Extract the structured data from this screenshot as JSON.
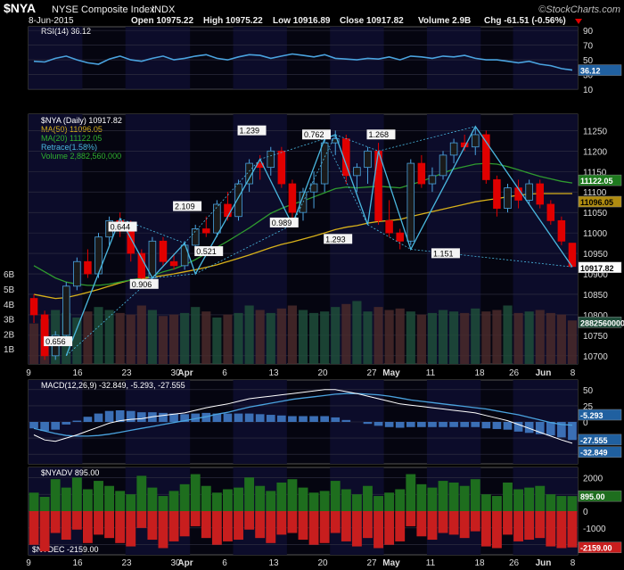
{
  "header": {
    "symbol": "$NYA",
    "name": "NYSE Composite Index",
    "exchange": "INDX",
    "source": "©StockCharts.com",
    "date": "8-Jun-2015",
    "open": "Open 10975.22",
    "high": "High 10975.22",
    "low": "Low 10916.89",
    "close": "Close 10917.82",
    "volume": "Volume 2.9B",
    "change": "Chg -61.51 (-0.56%)"
  },
  "colors": {
    "up": "#1a1a1a",
    "down": "#e00000",
    "candle_outline": "#4aa3df",
    "ma50": "#d8b11a",
    "ma20": "#2f9a2f",
    "retrace": "#4ab8e0",
    "rsi": "#4aa3df",
    "macd": "#ffffff",
    "signal": "#4aa3df",
    "hist": "#3b6fb5",
    "volume": "#1f4d3a",
    "adv": "#1e6e1e",
    "dec": "#c81e1e",
    "grid": "#333344",
    "band": "#0c0c2a"
  },
  "chart_data": {
    "type": "candlestick",
    "x_ticks": [
      "9",
      "16",
      "23",
      "30",
      "Apr",
      "6",
      "13",
      "20",
      "27",
      "May",
      "11",
      "18",
      "26",
      "Jun",
      "8"
    ],
    "rsi": {
      "legend": "RSI(14) 36.12",
      "ticks": [
        "90",
        "70",
        "50",
        "30",
        "10"
      ],
      "range": [
        10,
        95
      ],
      "last": "36.12",
      "values": [
        48,
        47,
        52,
        55,
        50,
        46,
        44,
        51,
        55,
        50,
        48,
        52,
        55,
        50,
        52,
        55,
        57,
        52,
        50,
        54,
        57,
        56,
        52,
        55,
        58,
        56,
        54,
        57,
        52,
        51,
        50,
        52,
        51,
        54,
        50,
        55,
        54,
        52,
        55,
        54,
        56,
        52,
        50,
        50,
        48,
        46,
        48,
        44,
        42,
        38,
        36
      ]
    },
    "price": {
      "legend_symbol": "$NYA (Daily) 10917.82",
      "legend_ma50": "MA(50) 11096.05",
      "legend_ma20": "MA(20) 11122.05",
      "legend_retrace": "Retrace(1.58%)",
      "legend_volume": "Volume 2,882,560,000",
      "ticks": [
        "11250",
        "11200",
        "11150",
        "11100",
        "11050",
        "11000",
        "10950",
        "10900",
        "10850",
        "10800",
        "10750",
        "10700"
      ],
      "range": [
        10680,
        11290
      ],
      "tag_ma20": "11122.05",
      "tag_ma50": "11096.05",
      "tag_close": "10917.82",
      "ohlc": [
        [
          10840,
          10850,
          10780,
          10800
        ],
        [
          10800,
          10810,
          10690,
          10700
        ],
        [
          10700,
          10760,
          10690,
          10750
        ],
        [
          10750,
          10880,
          10740,
          10870
        ],
        [
          10870,
          10940,
          10860,
          10930
        ],
        [
          10930,
          10960,
          10890,
          10900
        ],
        [
          10900,
          11000,
          10890,
          10990
        ],
        [
          10990,
          11040,
          10970,
          11030
        ],
        [
          11030,
          11050,
          10990,
          11010
        ],
        [
          11010,
          11030,
          10930,
          10950
        ],
        [
          10950,
          10960,
          10880,
          10890
        ],
        [
          10890,
          10990,
          10880,
          10980
        ],
        [
          10980,
          10990,
          10920,
          10930
        ],
        [
          10930,
          10950,
          10910,
          10920
        ],
        [
          10920,
          10980,
          10910,
          10970
        ],
        [
          10970,
          11020,
          10960,
          11010
        ],
        [
          11010,
          11040,
          10990,
          11000
        ],
        [
          11000,
          11080,
          10990,
          11070
        ],
        [
          11070,
          11100,
          11030,
          11040
        ],
        [
          11040,
          11130,
          11030,
          11120
        ],
        [
          11120,
          11180,
          11100,
          11170
        ],
        [
          11170,
          11190,
          11130,
          11160
        ],
        [
          11160,
          11210,
          11140,
          11200
        ],
        [
          11200,
          11210,
          11110,
          11120
        ],
        [
          11120,
          11130,
          11020,
          11050
        ],
        [
          11050,
          11110,
          11030,
          11100
        ],
        [
          11100,
          11150,
          11060,
          11120
        ],
        [
          11120,
          11230,
          11100,
          11220
        ],
        [
          11220,
          11250,
          11190,
          11230
        ],
        [
          11230,
          11240,
          11120,
          11140
        ],
        [
          11140,
          11170,
          11100,
          11160
        ],
        [
          11160,
          11210,
          11120,
          11200
        ],
        [
          11200,
          11220,
          11020,
          11030
        ],
        [
          11030,
          11080,
          10990,
          11000
        ],
        [
          11000,
          11010,
          10960,
          10980
        ],
        [
          10980,
          11180,
          10970,
          11170
        ],
        [
          11170,
          11190,
          11110,
          11120
        ],
        [
          11120,
          11160,
          11100,
          11140
        ],
        [
          11140,
          11200,
          11130,
          11190
        ],
        [
          11190,
          11230,
          11170,
          11220
        ],
        [
          11220,
          11240,
          11200,
          11210
        ],
        [
          11210,
          11260,
          11190,
          11240
        ],
        [
          11240,
          11250,
          11120,
          11130
        ],
        [
          11130,
          11140,
          11040,
          11060
        ],
        [
          11060,
          11120,
          11050,
          11110
        ],
        [
          11110,
          11130,
          11060,
          11080
        ],
        [
          11080,
          11130,
          11070,
          11120
        ],
        [
          11120,
          11130,
          11060,
          11070
        ],
        [
          11070,
          11080,
          11020,
          11030
        ],
        [
          11030,
          11040,
          10970,
          10980
        ],
        [
          10975,
          10975,
          10917,
          10918
        ]
      ],
      "ma50": [
        10850,
        10845,
        10840,
        10842,
        10848,
        10855,
        10862,
        10870,
        10878,
        10885,
        10888,
        10892,
        10896,
        10900,
        10905,
        10910,
        10916,
        10922,
        10930,
        10938,
        10946,
        10955,
        10964,
        10972,
        10978,
        10985,
        10992,
        11000,
        11008,
        11014,
        11018,
        11024,
        11028,
        11030,
        11033,
        11040,
        11046,
        11052,
        11058,
        11064,
        11070,
        11076,
        11080,
        11084,
        11088,
        11092,
        11095,
        11096,
        11096,
        11096,
        11096
      ],
      "ma20": [
        10920,
        10905,
        10890,
        10880,
        10875,
        10872,
        10872,
        10875,
        10880,
        10885,
        10890,
        10895,
        10905,
        10912,
        10922,
        10935,
        10950,
        10965,
        10980,
        10996,
        11012,
        11030,
        11048,
        11060,
        11070,
        11078,
        11088,
        11098,
        11108,
        11112,
        11110,
        11112,
        11114,
        11112,
        11110,
        11118,
        11126,
        11136,
        11146,
        11156,
        11162,
        11168,
        11170,
        11168,
        11162,
        11154,
        11146,
        11138,
        11132,
        11126,
        11122
      ],
      "retrace_points": [
        [
          3,
          10700
        ],
        [
          8,
          11035
        ],
        [
          11,
          10890
        ],
        [
          14,
          10975
        ],
        [
          15,
          10900
        ],
        [
          21,
          11180
        ],
        [
          24,
          11020
        ],
        [
          27,
          11230
        ],
        [
          28,
          11240
        ],
        [
          31,
          11020
        ],
        [
          32,
          11200
        ],
        [
          35,
          10960
        ],
        [
          41,
          11260
        ],
        [
          50,
          10917
        ]
      ],
      "retrace_labels": [
        "0.656",
        "0.644",
        "0.906",
        "2.109",
        "0.521",
        "1.239",
        "0.989",
        "0.762",
        "1.293",
        "1.268",
        "1.151"
      ],
      "volume_ticks": [
        "6B",
        "5B",
        "4B",
        "3B",
        "2B",
        "1B"
      ],
      "volume_tag": "2882560000",
      "volume": [
        2.7,
        3.0,
        3.6,
        3.4,
        3.1,
        3.5,
        3.8,
        3.6,
        3.4,
        3.3,
        3.9,
        3.6,
        3.2,
        3.3,
        3.4,
        3.8,
        3.5,
        3.1,
        3.3,
        3.4,
        3.9,
        3.6,
        3.4,
        3.7,
        3.9,
        3.6,
        3.4,
        3.5,
        3.8,
        4.0,
        4.2,
        3.5,
        3.8,
        3.6,
        3.7,
        3.5,
        3.3,
        3.4,
        3.6,
        3.5,
        3.4,
        3.7,
        3.5,
        3.6,
        3.9,
        3.4,
        3.5,
        3.6,
        3.4,
        3.3,
        2.9
      ]
    },
    "macd": {
      "legend": "MACD(12,26,9) -32.849, -5.293, -27.555",
      "ticks": [
        "50",
        "25",
        "0",
        "-25",
        "-50"
      ],
      "range": [
        -65,
        65
      ],
      "tags": [
        "-5.293",
        "-27.555",
        "-32.849"
      ],
      "macd": [
        -20,
        -28,
        -30,
        -25,
        -20,
        -14,
        -8,
        -2,
        2,
        4,
        5,
        8,
        10,
        12,
        14,
        18,
        22,
        25,
        28,
        32,
        36,
        38,
        40,
        42,
        44,
        46,
        48,
        50,
        50,
        47,
        44,
        40,
        36,
        32,
        28,
        26,
        24,
        22,
        20,
        18,
        16,
        14,
        10,
        6,
        2,
        -4,
        -10,
        -16,
        -22,
        -28,
        -33
      ],
      "signal": [
        -10,
        -14,
        -18,
        -21,
        -22,
        -22,
        -21,
        -19,
        -16,
        -13,
        -10,
        -7,
        -4,
        -1,
        2,
        5,
        8,
        12,
        15,
        19,
        23,
        26,
        29,
        32,
        35,
        37,
        39,
        41,
        43,
        44,
        44,
        43,
        42,
        40,
        37,
        34,
        32,
        30,
        28,
        26,
        24,
        22,
        20,
        17,
        14,
        11,
        7,
        3,
        -1,
        -4,
        -5
      ]
    },
    "breadth": {
      "legend_adv": "$NYADV 895.00",
      "legend_dec": "$NYDEC -2159.00",
      "ticks": [
        "2000",
        "1000",
        "0",
        "-1000",
        "-2000"
      ],
      "range": [
        -2600,
        2600
      ],
      "tag_adv": "895.00",
      "tag_dec": "-2159.00",
      "adv": [
        1100,
        850,
        1900,
        1400,
        2000,
        1300,
        1800,
        1500,
        1200,
        1000,
        2100,
        1400,
        900,
        1200,
        1600,
        2200,
        1500,
        1100,
        1300,
        1400,
        2000,
        1500,
        1200,
        1700,
        1900,
        1400,
        1100,
        1200,
        1800,
        1300,
        1000,
        1500,
        900,
        1100,
        1300,
        2200,
        1600,
        1400,
        1800,
        1700,
        1500,
        1900,
        1000,
        900,
        1700,
        1300,
        1400,
        1500,
        1000,
        900,
        895
      ],
      "dec": [
        -2000,
        -2400,
        -1300,
        -1700,
        -1100,
        -1900,
        -1400,
        -1600,
        -1900,
        -2100,
        -1000,
        -1700,
        -2200,
        -1800,
        -1500,
        -900,
        -1600,
        -2000,
        -1800,
        -1700,
        -1100,
        -1600,
        -1900,
        -1400,
        -1300,
        -1700,
        -2000,
        -1900,
        -1300,
        -1800,
        -2100,
        -1600,
        -2200,
        -2000,
        -1800,
        -900,
        -1500,
        -1700,
        -1300,
        -1400,
        -1600,
        -1200,
        -2100,
        -2200,
        -1400,
        -1800,
        -1700,
        -1600,
        -2100,
        -2200,
        -2159
      ]
    }
  }
}
